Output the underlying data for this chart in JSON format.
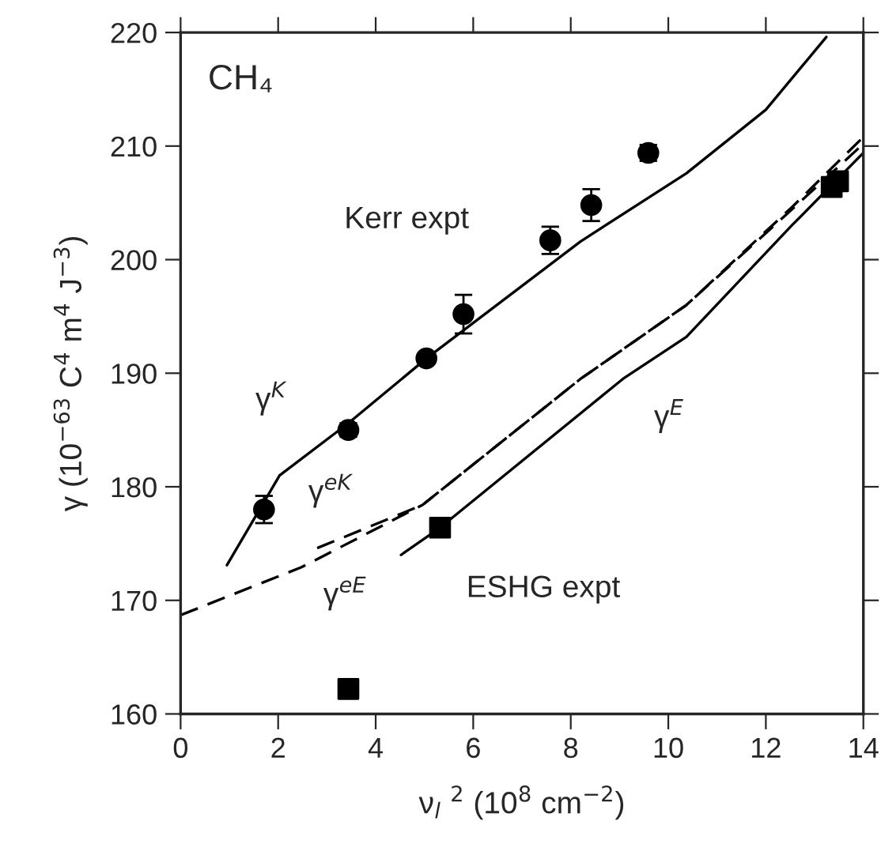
{
  "chart_data": {
    "type": "line",
    "xlabel": "ν$_{l}$ $^{2}$ (10$^{8}$ cm$^{−2}$)",
    "ylabel": "γ (10$^{−63}$ C$^{4}$ m$^{4}$ J$^{−3}$)",
    "xlim": [
      0,
      14
    ],
    "xticks": [
      0,
      2,
      4,
      6,
      8,
      10,
      12,
      14
    ],
    "ylim": [
      160,
      220
    ],
    "yticks": [
      160,
      170,
      180,
      190,
      200,
      210,
      220
    ],
    "grid": false,
    "legend": false,
    "series": [
      {
        "name": "γ$^{K}$",
        "color": "#000000",
        "line_style": "solid",
        "marker": "none",
        "x": [
          0.95,
          2.03,
          3.44,
          5.04,
          8.2,
          10.37,
          12.0,
          13.24
        ],
        "values": [
          173.1,
          181.0,
          185.6,
          191.3,
          201.6,
          207.6,
          213.2,
          219.6
        ]
      },
      {
        "name": "γ$^{eE}$",
        "color": "#000000",
        "line_style": "dashed",
        "marker": "none",
        "x": [
          0,
          2.47,
          4.96,
          8.2,
          10.37,
          12.53,
          14
        ],
        "values": [
          168.7,
          172.9,
          178.4,
          189.5,
          196.0,
          204.4,
          210.2
        ]
      },
      {
        "name": "γ$^{eK}$",
        "color": "#000000",
        "line_style": "dashed",
        "marker": "none",
        "x": [
          2.8,
          4.96,
          8.2,
          10.37,
          12.53,
          14
        ],
        "values": [
          174.6,
          178.4,
          189.5,
          196.0,
          204.6,
          210.8
        ]
      },
      {
        "name": "γ$^{E}$",
        "color": "#000000",
        "line_style": "solid",
        "marker": "none",
        "x": [
          4.52,
          5.32,
          9.07,
          10.37,
          12.53,
          14
        ],
        "values": [
          174.0,
          176.4,
          189.5,
          193.2,
          203.0,
          209.4
        ]
      },
      {
        "type": "scatter",
        "name": "Kerr expt",
        "color": "#000000",
        "marker": "circle",
        "x": [
          1.71,
          3.44,
          5.04,
          5.8,
          7.58,
          8.42,
          9.59
        ],
        "values": [
          178.0,
          185.0,
          191.3,
          195.2,
          201.7,
          204.8,
          209.4
        ],
        "errors": [
          1.2,
          0.6,
          0.4,
          1.7,
          1.2,
          1.4,
          0.7
        ]
      },
      {
        "type": "scatter",
        "name": "ESHG expt",
        "color": "#000000",
        "marker": "square",
        "x": [
          3.44,
          5.32,
          13.35,
          13.48
        ],
        "values": [
          162.2,
          176.4,
          206.4,
          206.9
        ]
      }
    ],
    "annotations": [
      "CH₄"
    ]
  }
}
